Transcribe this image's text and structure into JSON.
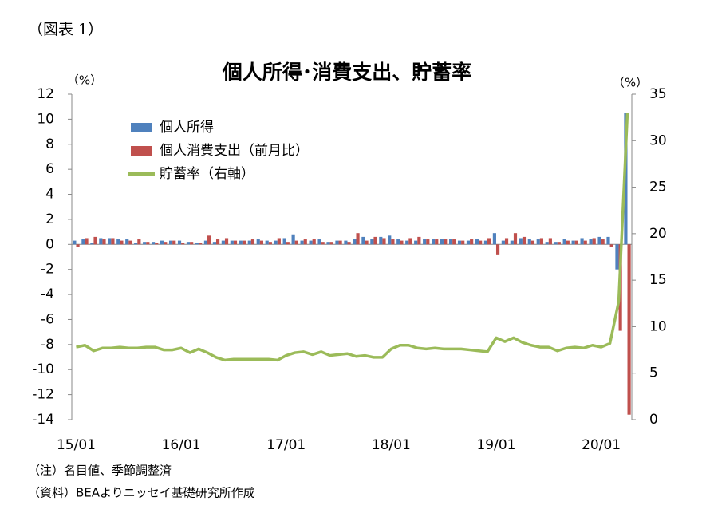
{
  "figure_label": "（図表 1）",
  "chart_data": {
    "type": "combo",
    "title": "個人所得･消費支出、貯蓄率",
    "y_label": "（%）",
    "y2_label": "（%）",
    "categories": [
      "15/01",
      null,
      null,
      null,
      null,
      null,
      null,
      null,
      null,
      null,
      null,
      null,
      "16/01",
      null,
      null,
      null,
      null,
      null,
      null,
      null,
      null,
      null,
      null,
      null,
      "17/01",
      null,
      null,
      null,
      null,
      null,
      null,
      null,
      null,
      null,
      null,
      null,
      "18/01",
      null,
      null,
      null,
      null,
      null,
      null,
      null,
      null,
      null,
      null,
      null,
      "19/01",
      null,
      null,
      null,
      null,
      null,
      null,
      null,
      null,
      null,
      null,
      null,
      "20/01",
      null,
      null,
      null
    ],
    "series": [
      {
        "name": "個人所得",
        "type": "bar",
        "color": "#4f81bd",
        "values": [
          0.3,
          0.4,
          0.1,
          0.5,
          0.5,
          0.4,
          0.4,
          0.1,
          0.2,
          0.2,
          0.3,
          0.3,
          0.3,
          0.2,
          0.1,
          0.3,
          0.2,
          0.3,
          0.3,
          0.3,
          0.3,
          0.4,
          0.3,
          0.3,
          0.5,
          0.8,
          0.3,
          0.3,
          0.4,
          0.2,
          0.3,
          0.3,
          0.4,
          0.6,
          0.4,
          0.6,
          0.7,
          0.4,
          0.3,
          0.3,
          0.4,
          0.4,
          0.4,
          0.4,
          0.3,
          0.3,
          0.4,
          0.3,
          0.9,
          0.3,
          0.3,
          0.5,
          0.4,
          0.4,
          0.2,
          0.2,
          0.4,
          0.3,
          0.5,
          0.4,
          0.6,
          0.6,
          -2.0,
          10.5
        ]
      },
      {
        "name": "個人消費支出（前月比）",
        "type": "bar",
        "color": "#c0504d",
        "values": [
          -0.2,
          0.5,
          0.6,
          0.4,
          0.5,
          0.3,
          0.3,
          0.4,
          0.2,
          0.1,
          0.2,
          0.3,
          0.1,
          0.2,
          0.1,
          0.7,
          0.4,
          0.5,
          0.3,
          0.3,
          0.4,
          0.3,
          0.2,
          0.5,
          0.2,
          0.3,
          0.4,
          0.4,
          0.2,
          0.2,
          0.3,
          0.2,
          0.9,
          0.3,
          0.6,
          0.5,
          0.4,
          0.3,
          0.5,
          0.6,
          0.4,
          0.4,
          0.4,
          0.4,
          0.3,
          0.4,
          0.3,
          0.5,
          -0.8,
          0.5,
          0.9,
          0.6,
          0.3,
          0.5,
          0.5,
          0.2,
          0.3,
          0.3,
          0.3,
          0.5,
          0.4,
          -0.2,
          -6.9,
          -13.6
        ]
      },
      {
        "name": "貯蓄率（右軸）",
        "type": "line",
        "axis": "y2",
        "color": "#9bbb59",
        "values": [
          7.8,
          8.0,
          7.4,
          7.7,
          7.7,
          7.8,
          7.7,
          7.7,
          7.8,
          7.8,
          7.5,
          7.5,
          7.7,
          7.2,
          7.6,
          7.2,
          6.7,
          6.4,
          6.5,
          6.5,
          6.5,
          6.5,
          6.5,
          6.4,
          6.9,
          7.2,
          7.3,
          7.0,
          7.3,
          6.9,
          7.0,
          7.1,
          6.8,
          6.9,
          6.7,
          6.7,
          7.6,
          8.0,
          8.0,
          7.7,
          7.6,
          7.7,
          7.6,
          7.6,
          7.6,
          7.5,
          7.4,
          7.3,
          8.8,
          8.4,
          8.8,
          8.3,
          8.0,
          7.8,
          7.8,
          7.4,
          7.7,
          7.8,
          7.7,
          8.0,
          7.8,
          8.2,
          12.7,
          33.0
        ]
      }
    ],
    "ylim": [
      -14,
      12
    ],
    "yticks": [
      -14,
      -12,
      -10,
      -8,
      -6,
      -4,
      -2,
      0,
      2,
      4,
      6,
      8,
      10,
      12
    ],
    "y2lim": [
      0,
      35
    ],
    "y2ticks": [
      0,
      5,
      10,
      15,
      20,
      25,
      30,
      35
    ],
    "grid": false,
    "legend": "upper-left"
  },
  "notes": [
    "（注）名目値、季節調整済",
    "（資料）BEAよりニッセイ基礎研究所作成"
  ]
}
